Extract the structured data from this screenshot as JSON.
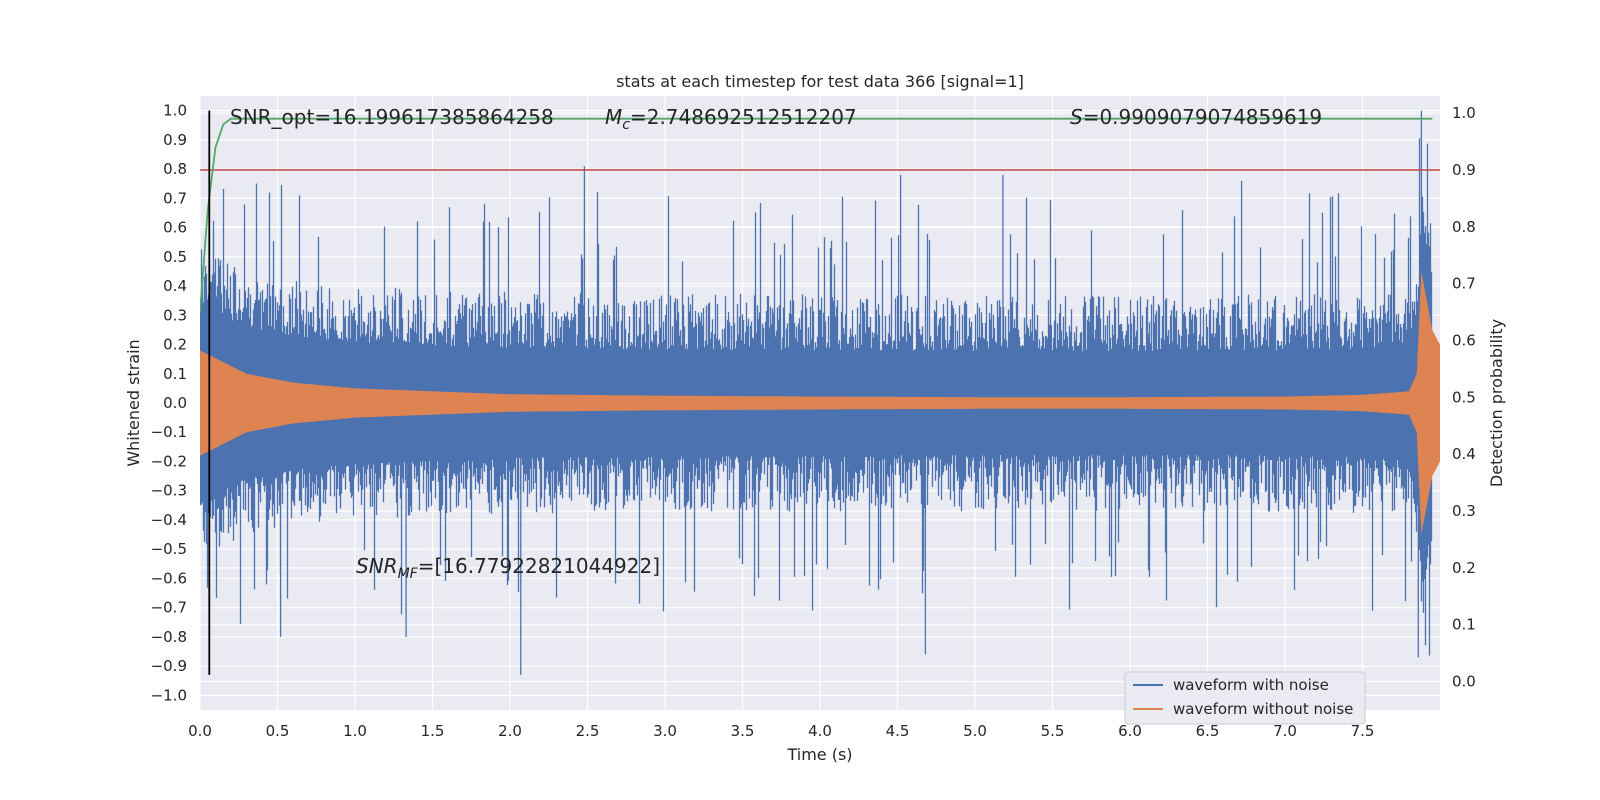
{
  "chart_data": {
    "type": "line",
    "title": "stats at each timestep for test data 366 [signal=1]",
    "xlabel": "Time (s)",
    "ylabel": "Whitened strain",
    "ylabel_right": "Detection probability",
    "xlim": [
      0.0,
      8.0
    ],
    "ylim": [
      -1.05,
      1.05
    ],
    "ylim_right": [
      -0.05,
      1.03
    ],
    "grid": true,
    "legend_placement": "lower-right",
    "x_ticks": [
      "0.0",
      "0.5",
      "1.0",
      "1.5",
      "2.0",
      "2.5",
      "3.0",
      "3.5",
      "4.0",
      "4.5",
      "5.0",
      "5.5",
      "6.0",
      "6.5",
      "7.0",
      "7.5"
    ],
    "y_ticks": [
      "1.0",
      "0.9",
      "0.8",
      "0.7",
      "0.6",
      "0.5",
      "0.4",
      "0.3",
      "0.2",
      "0.1",
      "0.0",
      "−0.1",
      "−0.2",
      "−0.3",
      "−0.4",
      "−0.5",
      "−0.6",
      "−0.7",
      "−0.8",
      "−0.9",
      "−1.0"
    ],
    "y_ticks_right": [
      "1.0",
      "0.9",
      "0.8",
      "0.7",
      "0.6",
      "0.5",
      "0.4",
      "0.3",
      "0.2",
      "0.1",
      "0.0"
    ],
    "annotations": {
      "snr_opt": "SNR_opt=16.199617385864258",
      "mc_symbol": "M",
      "mc_sub": "c",
      "mc_value": "=2.748692512512207",
      "s_symbol": "S",
      "s_value": "=0.9909079074859619",
      "snr_mf_symbol": "SNR",
      "snr_mf_sub": "MF",
      "snr_mf_value": "=[16.77922821044922]"
    },
    "series": [
      {
        "name": "waveform with noise",
        "color": "#4c72b0",
        "envelope_peak": 1.0,
        "envelope_peak_time": 7.88,
        "typical_amplitude": 0.35,
        "notable_peaks": [
          [
            2.48,
            0.81
          ],
          [
            4.52,
            0.78
          ],
          [
            5.18,
            0.78
          ],
          [
            6.72,
            0.76
          ],
          [
            2.07,
            -0.93
          ],
          [
            1.33,
            -0.8
          ],
          [
            0.52,
            -0.8
          ],
          [
            4.68,
            -0.86
          ],
          [
            7.86,
            -0.87
          ]
        ]
      },
      {
        "name": "waveform without noise",
        "color": "#dd8452",
        "envelope": [
          [
            0.0,
            0.18
          ],
          [
            0.3,
            0.1
          ],
          [
            0.6,
            0.07
          ],
          [
            1.0,
            0.05
          ],
          [
            2.0,
            0.03
          ],
          [
            3.0,
            0.025
          ],
          [
            4.0,
            0.022
          ],
          [
            5.0,
            0.02
          ],
          [
            6.0,
            0.02
          ],
          [
            7.0,
            0.022
          ],
          [
            7.5,
            0.028
          ],
          [
            7.8,
            0.04
          ],
          [
            7.85,
            0.1
          ],
          [
            7.88,
            0.45
          ],
          [
            7.95,
            0.25
          ],
          [
            8.0,
            0.2
          ]
        ]
      },
      {
        "name": "detection probability",
        "color": "#55a868",
        "axis": "right",
        "points": [
          [
            0.0,
            0.65
          ],
          [
            0.05,
            0.83
          ],
          [
            0.1,
            0.94
          ],
          [
            0.15,
            0.98
          ],
          [
            0.2,
            0.99
          ],
          [
            1.0,
            0.99
          ],
          [
            7.95,
            0.99
          ]
        ]
      },
      {
        "name": "threshold",
        "color": "#c44e52",
        "axis": "right",
        "value": 0.9
      },
      {
        "name": "trigger time",
        "color": "#000000",
        "x": 0.06
      }
    ]
  }
}
